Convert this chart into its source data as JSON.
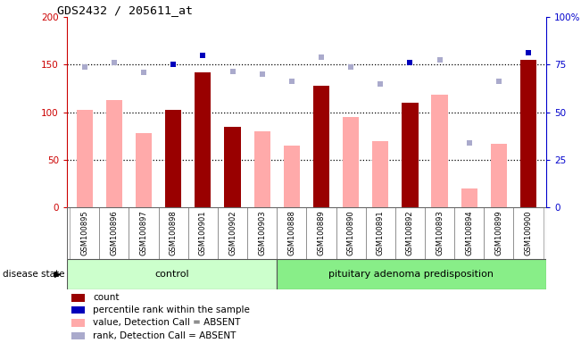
{
  "title": "GDS2432 / 205611_at",
  "samples": [
    "GSM100895",
    "GSM100896",
    "GSM100897",
    "GSM100898",
    "GSM100901",
    "GSM100902",
    "GSM100903",
    "GSM100888",
    "GSM100889",
    "GSM100890",
    "GSM100891",
    "GSM100892",
    "GSM100893",
    "GSM100894",
    "GSM100899",
    "GSM100900"
  ],
  "n_control": 7,
  "n_disease": 9,
  "count_values": [
    0,
    0,
    0,
    103,
    142,
    85,
    0,
    0,
    128,
    0,
    0,
    110,
    0,
    0,
    0,
    155
  ],
  "value_absent": [
    103,
    113,
    78,
    0,
    0,
    0,
    80,
    65,
    0,
    95,
    70,
    0,
    119,
    20,
    67,
    0
  ],
  "rank_absent": [
    148,
    152,
    142,
    150,
    160,
    143,
    140,
    133,
    158,
    148,
    130,
    152,
    155,
    68,
    133,
    163
  ],
  "rank_is_dark": [
    false,
    false,
    false,
    true,
    true,
    false,
    false,
    false,
    false,
    false,
    false,
    true,
    false,
    false,
    false,
    true
  ],
  "ylim_left": [
    0,
    200
  ],
  "ylim_right": [
    0,
    100
  ],
  "yticks_left": [
    0,
    50,
    100,
    150,
    200
  ],
  "yticks_right": [
    0,
    25,
    50,
    75,
    100
  ],
  "ytick_right_labels": [
    "0",
    "25",
    "50",
    "75",
    "100%"
  ],
  "group_labels": [
    "control",
    "pituitary adenoma predisposition"
  ],
  "color_count": "#990000",
  "color_absent_value": "#ffaaaa",
  "color_rank_dark": "#0000bb",
  "color_rank_light": "#aaaacc",
  "color_left_axis": "#cc0000",
  "color_right_axis": "#0000cc",
  "color_plot_bg": "#ffffff",
  "color_sample_bg": "#cccccc",
  "color_control_bg": "#ccffcc",
  "color_disease_bg": "#88ee88",
  "legend_labels": [
    "count",
    "percentile rank within the sample",
    "value, Detection Call = ABSENT",
    "rank, Detection Call = ABSENT"
  ],
  "disease_state_label": "disease state"
}
